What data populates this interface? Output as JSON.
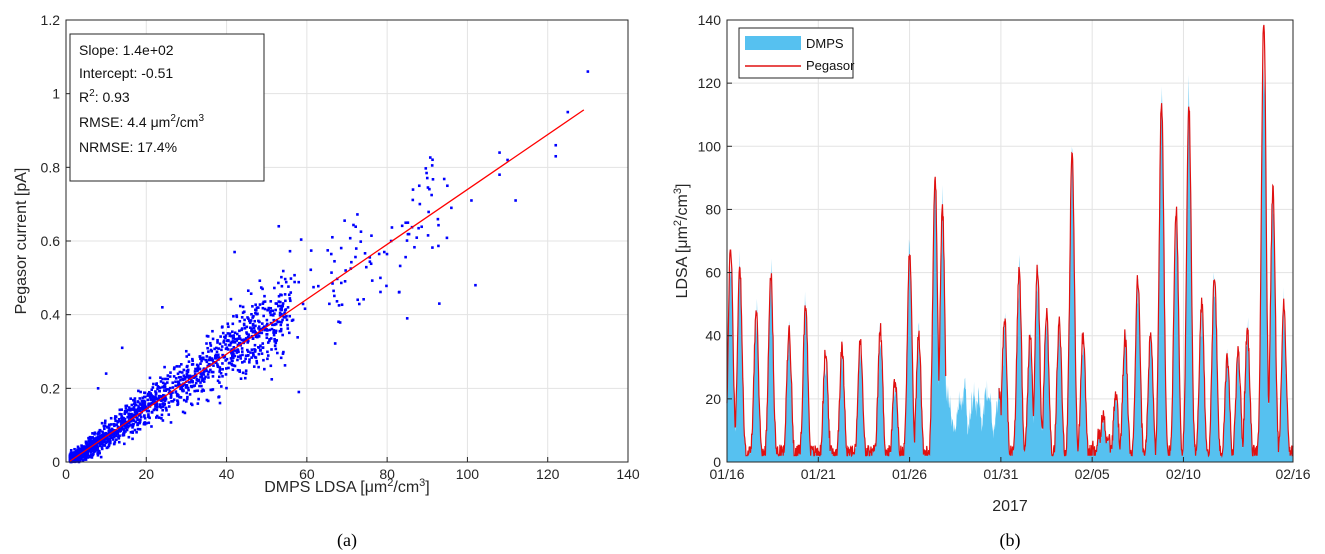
{
  "chart_data": [
    {
      "type": "scatter",
      "caption": "(a)",
      "xlabel_main": "DMPS LDSA [μm",
      "xlabel_sup": "2",
      "xlabel_mid": "/cm",
      "xlabel_sup2": "3",
      "xlabel_end": "]",
      "ylabel": "Pegasor current [pA]",
      "xlim": [
        0,
        140
      ],
      "ylim": [
        0,
        1.2
      ],
      "xticks": [
        0,
        20,
        40,
        60,
        80,
        100,
        120,
        140
      ],
      "yticks": [
        0,
        0.2,
        0.4,
        0.6,
        0.8,
        1,
        1.2
      ],
      "ytick_labels": [
        "0",
        "0.2",
        "0.4",
        "0.6",
        "0.8",
        "1",
        "1.2"
      ],
      "grid": true,
      "point_color": "#0000ff",
      "fit_color": "#ff0000",
      "fit": {
        "slope_per_unit": 0.00745,
        "intercept": -0.0051,
        "x_range": [
          1,
          129
        ]
      },
      "stats": {
        "slope": "Slope: 1.4e+02",
        "intercept": "Intercept: -0.51",
        "r2_prefix": "R",
        "r2_sup": "2",
        "r2_value": ": 0.93",
        "rmse_prefix": "RMSE: 4.4 μm",
        "rmse_sup": "2",
        "rmse_mid": "/cm",
        "rmse_sup2": "3",
        "nrmse": "NRMSE: 17.4%"
      },
      "outliers": [
        [
          130,
          1.06
        ],
        [
          125,
          0.95
        ],
        [
          122,
          0.86
        ],
        [
          122,
          0.83
        ],
        [
          112,
          0.71
        ],
        [
          108,
          0.84
        ],
        [
          108,
          0.78
        ],
        [
          110,
          0.82
        ],
        [
          102,
          0.48
        ],
        [
          93,
          0.43
        ],
        [
          101,
          0.71
        ],
        [
          96,
          0.69
        ],
        [
          95,
          0.75
        ],
        [
          88,
          0.75
        ],
        [
          81,
          0.6
        ],
        [
          85,
          0.39
        ],
        [
          58,
          0.19
        ],
        [
          53,
          0.64
        ],
        [
          42,
          0.57
        ],
        [
          24,
          0.42
        ],
        [
          14,
          0.31
        ],
        [
          10,
          0.24
        ],
        [
          8,
          0.2
        ]
      ]
    },
    {
      "type": "area",
      "caption": "(b)",
      "xlabel": "2017",
      "ylabel_main": "LDSA [μm",
      "ylabel_sup": "2",
      "ylabel_mid": "/cm",
      "ylabel_sup2": "3",
      "ylabel_end": "]",
      "xlim_days": [
        16,
        47
      ],
      "xtick_labels": [
        "01/16",
        "01/21",
        "01/26",
        "01/31",
        "02/05",
        "02/10",
        "02/16"
      ],
      "xtick_days": [
        16,
        21,
        26,
        31,
        36,
        41,
        47
      ],
      "ylim": [
        0,
        140
      ],
      "yticks": [
        0,
        20,
        40,
        60,
        80,
        100,
        120,
        140
      ],
      "grid": true,
      "legend_position": "top-left",
      "series": [
        {
          "name": "DMPS",
          "kind": "area",
          "color": "#56c1f0"
        },
        {
          "name": "Pegasor",
          "kind": "line",
          "color": "#e01010"
        }
      ],
      "daily_peaks": [
        [
          16.2,
          68
        ],
        [
          16.7,
          62
        ],
        [
          17.6,
          47
        ],
        [
          18.4,
          60
        ],
        [
          19.4,
          42
        ],
        [
          20.3,
          50
        ],
        [
          21.4,
          35
        ],
        [
          22.3,
          36
        ],
        [
          23.3,
          38
        ],
        [
          24.4,
          42
        ],
        [
          25.2,
          26
        ],
        [
          26.0,
          66
        ],
        [
          26.5,
          40
        ],
        [
          27.4,
          90
        ],
        [
          27.8,
          80
        ],
        [
          29.0,
          26
        ],
        [
          29.8,
          24
        ],
        [
          30.4,
          22
        ],
        [
          31.2,
          46
        ],
        [
          32.0,
          60
        ],
        [
          32.6,
          40
        ],
        [
          33.0,
          62
        ],
        [
          33.5,
          48
        ],
        [
          34.2,
          45
        ],
        [
          34.9,
          98
        ],
        [
          35.5,
          40
        ],
        [
          36.6,
          15
        ],
        [
          37.3,
          22
        ],
        [
          37.8,
          40
        ],
        [
          38.5,
          58
        ],
        [
          39.2,
          40
        ],
        [
          39.8,
          114
        ],
        [
          40.6,
          80
        ],
        [
          41.3,
          112
        ],
        [
          42.0,
          50
        ],
        [
          42.7,
          60
        ],
        [
          43.4,
          33
        ],
        [
          44.0,
          35
        ],
        [
          44.5,
          42
        ],
        [
          45.4,
          140
        ],
        [
          45.9,
          86
        ],
        [
          46.5,
          50
        ]
      ]
    }
  ]
}
